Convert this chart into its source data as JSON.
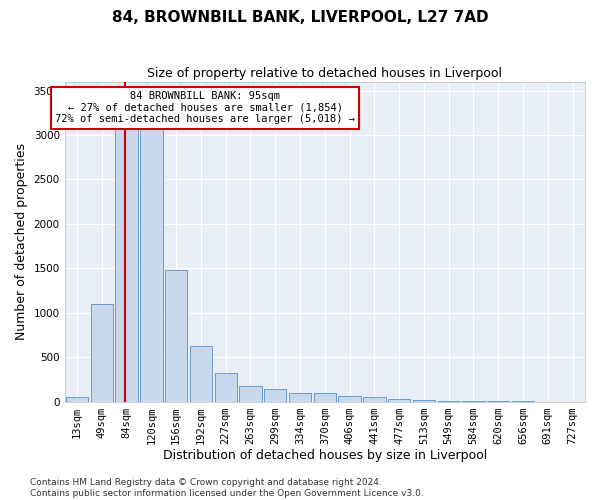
{
  "title": "84, BROWNBILL BANK, LIVERPOOL, L27 7AD",
  "subtitle": "Size of property relative to detached houses in Liverpool",
  "xlabel": "Distribution of detached houses by size in Liverpool",
  "ylabel": "Number of detached properties",
  "bin_labels": [
    "13sqm",
    "49sqm",
    "84sqm",
    "120sqm",
    "156sqm",
    "192sqm",
    "227sqm",
    "263sqm",
    "299sqm",
    "334sqm",
    "370sqm",
    "406sqm",
    "441sqm",
    "477sqm",
    "513sqm",
    "549sqm",
    "584sqm",
    "620sqm",
    "656sqm",
    "691sqm",
    "727sqm"
  ],
  "bar_values": [
    50,
    1100,
    3400,
    3390,
    1480,
    620,
    320,
    170,
    145,
    100,
    100,
    58,
    50,
    28,
    18,
    5,
    4,
    2,
    1,
    0,
    0
  ],
  "bar_color": "#c9d9ed",
  "bar_edge_color": "#5b8fc9",
  "vline_color": "#cc0000",
  "annotation_text": "84 BROWNBILL BANK: 95sqm\n← 27% of detached houses are smaller (1,854)\n72% of semi-detached houses are larger (5,018) →",
  "annotation_box_color": "#cc0000",
  "ylim": [
    0,
    3600
  ],
  "yticks": [
    0,
    500,
    1000,
    1500,
    2000,
    2500,
    3000,
    3500
  ],
  "footer_line1": "Contains HM Land Registry data © Crown copyright and database right 2024.",
  "footer_line2": "Contains public sector information licensed under the Open Government Licence v3.0.",
  "fig_bg_color": "#ffffff",
  "ax_bg_color": "#e8eef5",
  "grid_color": "#ffffff",
  "title_fontsize": 11,
  "subtitle_fontsize": 9,
  "axis_label_fontsize": 9,
  "tick_fontsize": 7.5,
  "annotation_fontsize": 7.5,
  "footer_fontsize": 6.5
}
